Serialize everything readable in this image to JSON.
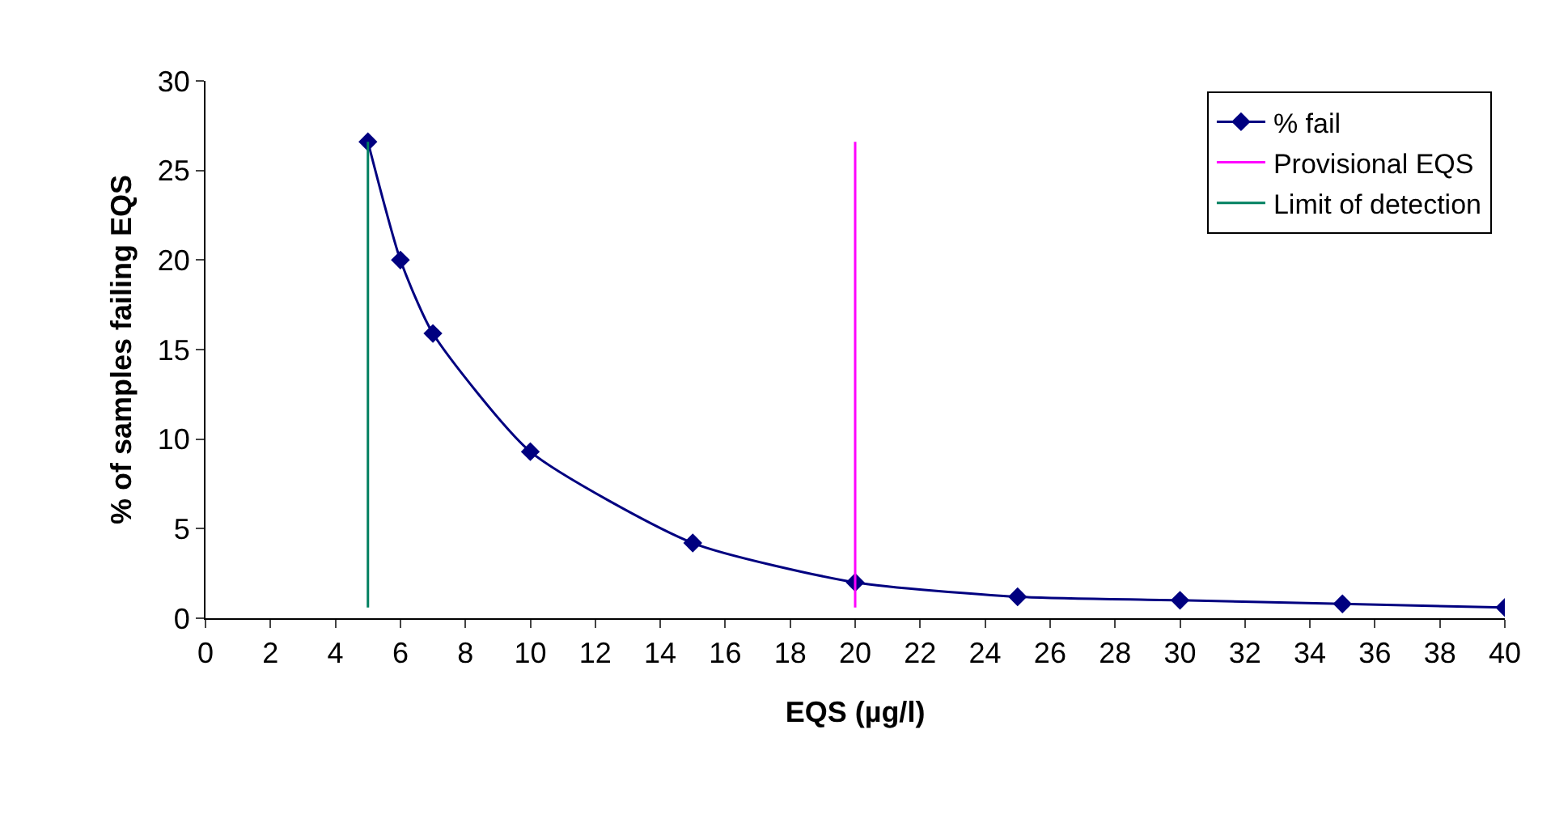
{
  "chart_data": {
    "type": "line",
    "xlabel": "EQS (µg/l)",
    "ylabel": "% of samples failing EQS",
    "xlim": [
      0,
      40
    ],
    "xticks": [
      0,
      2,
      4,
      6,
      8,
      10,
      12,
      14,
      16,
      18,
      20,
      22,
      24,
      26,
      28,
      30,
      32,
      34,
      36,
      38,
      40
    ],
    "ylim": [
      0,
      30
    ],
    "yticks": [
      0,
      5,
      10,
      15,
      20,
      25,
      30
    ],
    "grid": false,
    "legend": "top right",
    "series": [
      {
        "name": "% fail",
        "color": "#000080",
        "marker": "diamond",
        "x": [
          5,
          6,
          7,
          10,
          15,
          20,
          25,
          30,
          35,
          40
        ],
        "values": [
          26.6,
          20.0,
          15.9,
          9.3,
          4.2,
          2.0,
          1.2,
          1.0,
          0.8,
          0.6
        ]
      },
      {
        "name": "Provisional EQS",
        "color": "#ff00ff",
        "marker": "none",
        "x": [
          20,
          20
        ],
        "values": [
          0.6,
          26.6
        ]
      },
      {
        "name": "Limit of detection",
        "color": "#008060",
        "marker": "none",
        "x": [
          5,
          5
        ],
        "values": [
          0.6,
          26.6
        ]
      }
    ]
  }
}
